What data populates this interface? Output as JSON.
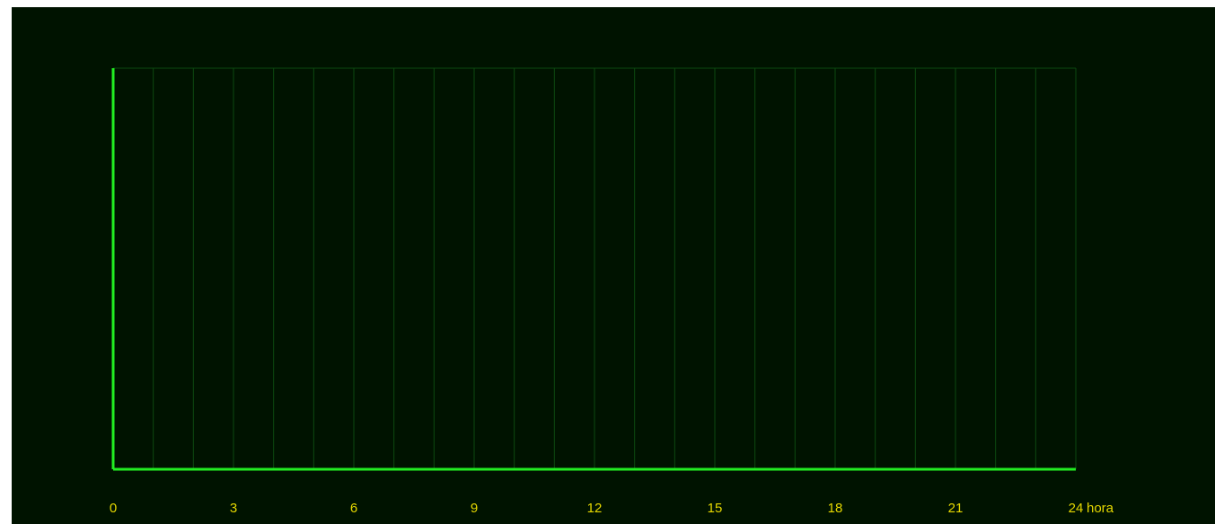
{
  "chart_data": {
    "type": "line",
    "title": "",
    "xlabel": "hora",
    "ylabel": "",
    "xlim": [
      0,
      24
    ],
    "x_ticks": [
      0,
      3,
      6,
      9,
      12,
      15,
      18,
      21,
      24
    ],
    "x_tick_labels": [
      "0",
      "3",
      "6",
      "9",
      "12",
      "15",
      "18",
      "21",
      "24"
    ],
    "vertical_gridlines_every": 1,
    "grid": true,
    "series": [],
    "colors": {
      "background": "#001300",
      "axis": "#22ee22",
      "grid": "#0c4a10",
      "tick_label": "#e6d800"
    }
  }
}
